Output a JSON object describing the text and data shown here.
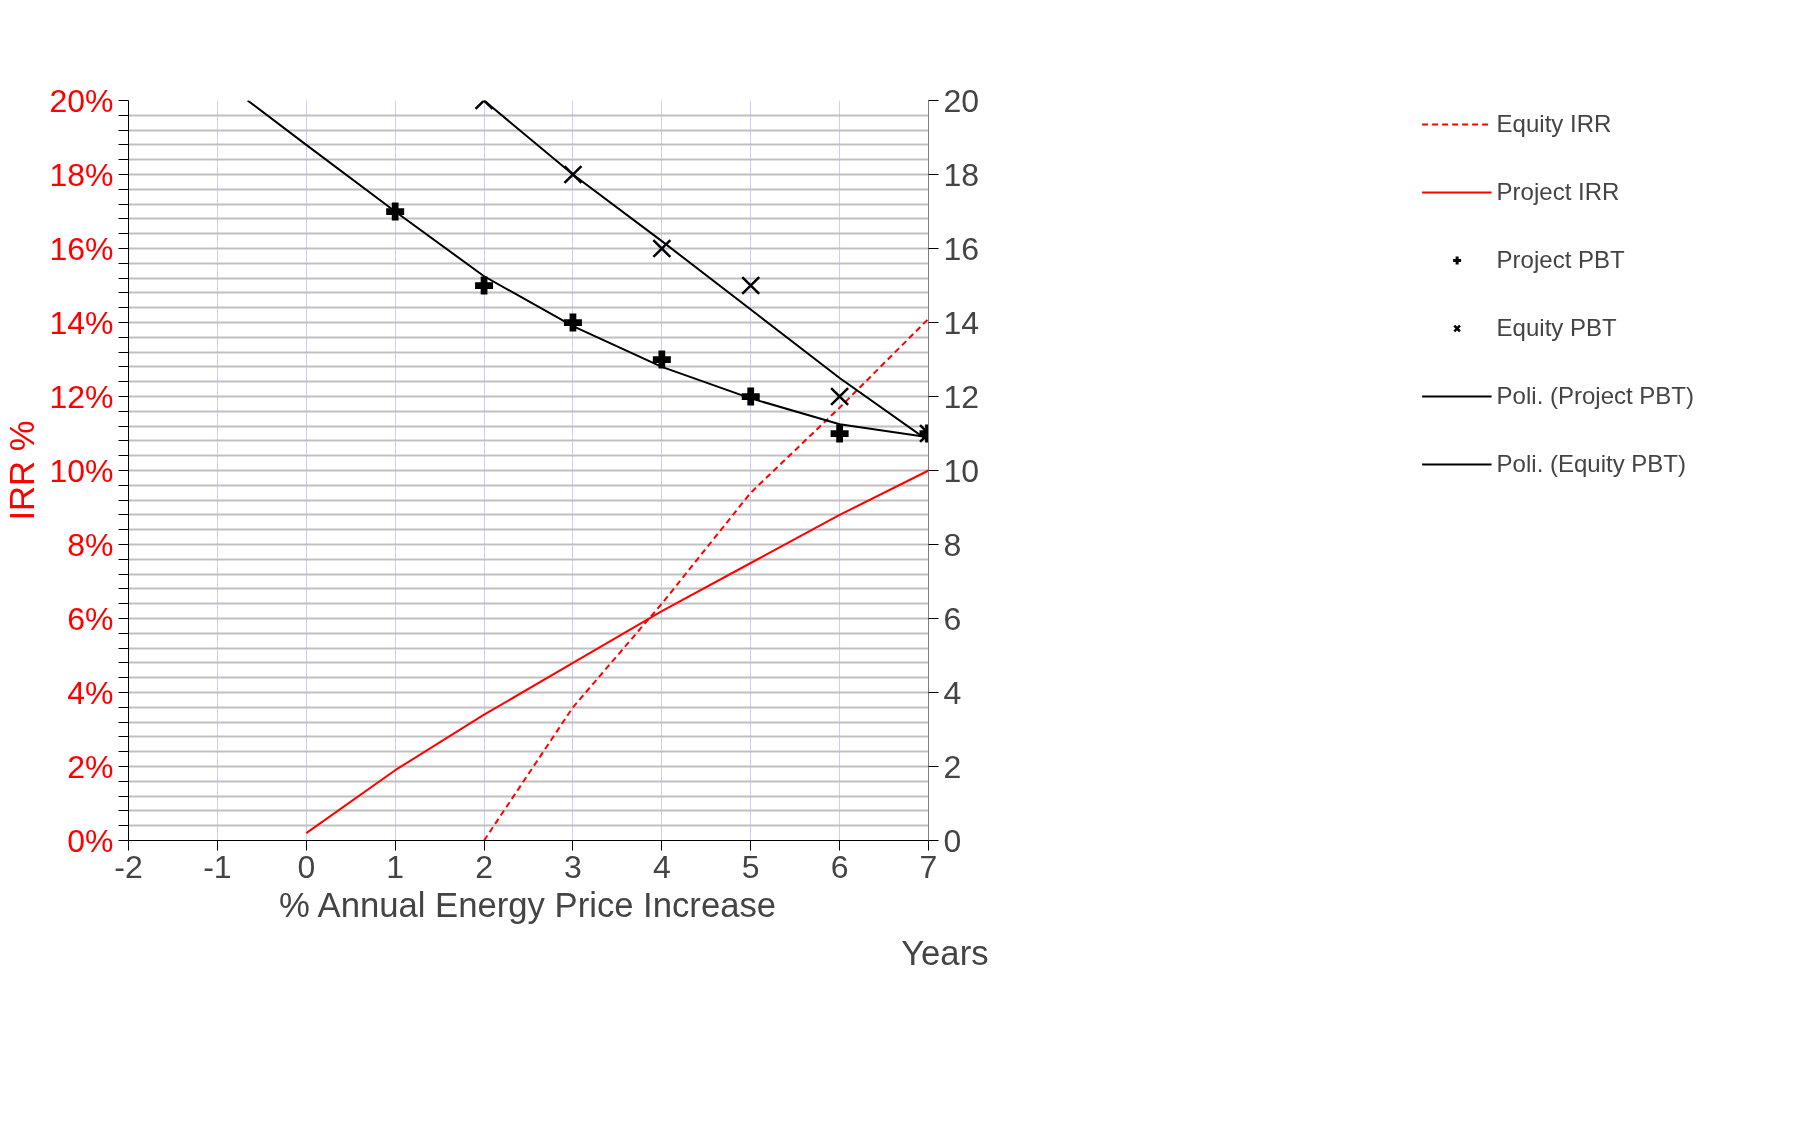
{
  "chart_data": {
    "type": "line",
    "xlabel": "% Annual Energy Price Increase",
    "ylabel": "IRR %",
    "y2label": "Years",
    "xlim": [
      -2,
      7
    ],
    "xticks": [
      -2,
      -1,
      0,
      1,
      2,
      3,
      4,
      5,
      6,
      7
    ],
    "ylim": [
      0,
      20
    ],
    "yticks": [
      {
        "value": 0,
        "label": "0%"
      },
      {
        "value": 0.4,
        "label": null
      },
      {
        "value": 0.8,
        "label": null
      },
      {
        "value": 1.2,
        "label": null
      },
      {
        "value": 1.6,
        "label": null
      },
      {
        "value": 2,
        "label": "2%"
      },
      {
        "value": 2.4,
        "label": null
      },
      {
        "value": 2.8,
        "label": null
      },
      {
        "value": 3.2,
        "label": null
      },
      {
        "value": 3.6,
        "label": null
      },
      {
        "value": 4,
        "label": "4%"
      },
      {
        "value": 4.4,
        "label": null
      },
      {
        "value": 4.8,
        "label": null
      },
      {
        "value": 5.2,
        "label": null
      },
      {
        "value": 5.6,
        "label": null
      },
      {
        "value": 6,
        "label": "6%"
      },
      {
        "value": 6.4,
        "label": null
      },
      {
        "value": 6.8,
        "label": null
      },
      {
        "value": 7.2,
        "label": null
      },
      {
        "value": 7.6,
        "label": null
      },
      {
        "value": 8,
        "label": "8%"
      },
      {
        "value": 8.4,
        "label": null
      },
      {
        "value": 8.8,
        "label": null
      },
      {
        "value": 9.2,
        "label": null
      },
      {
        "value": 9.6,
        "label": null
      },
      {
        "value": 10,
        "label": "10%"
      },
      {
        "value": 10.4,
        "label": null
      },
      {
        "value": 10.8,
        "label": null
      },
      {
        "value": 11.2,
        "label": null
      },
      {
        "value": 11.6,
        "label": null
      },
      {
        "value": 12,
        "label": "12%"
      },
      {
        "value": 12.4,
        "label": null
      },
      {
        "value": 12.8,
        "label": null
      },
      {
        "value": 13.2,
        "label": null
      },
      {
        "value": 13.6,
        "label": null
      },
      {
        "value": 14,
        "label": "14%"
      },
      {
        "value": 14.4,
        "label": null
      },
      {
        "value": 14.8,
        "label": null
      },
      {
        "value": 15.2,
        "label": null
      },
      {
        "value": 15.6,
        "label": null
      },
      {
        "value": 16,
        "label": "16%"
      },
      {
        "value": 16.4,
        "label": null
      },
      {
        "value": 16.8,
        "label": null
      },
      {
        "value": 17.2,
        "label": null
      },
      {
        "value": 17.6,
        "label": null
      },
      {
        "value": 18,
        "label": "18%"
      },
      {
        "value": 18.4,
        "label": null
      },
      {
        "value": 18.8,
        "label": null
      },
      {
        "value": 19.2,
        "label": null
      },
      {
        "value": 19.6,
        "label": null
      },
      {
        "value": 20,
        "label": "20%"
      }
    ],
    "y2lim": [
      0,
      20
    ],
    "y2ticks": [
      0,
      2,
      4,
      6,
      8,
      10,
      12,
      14,
      16,
      18,
      20
    ],
    "grid": true,
    "legend": "right",
    "series": [
      {
        "name": "Equity IRR",
        "line_style": "dashed",
        "marker": "none",
        "color": "#ff0000",
        "x": [
          2,
          3,
          4,
          5,
          6,
          7
        ],
        "values": [
          0,
          3.6,
          6.4,
          9.4,
          11.7,
          14.1
        ]
      },
      {
        "name": "Project IRR",
        "line_style": "solid",
        "marker": "none",
        "color": "#ff0000",
        "x": [
          0,
          1,
          2,
          3,
          4,
          5,
          6,
          7
        ],
        "values": [
          0.2,
          1.9,
          3.4,
          4.8,
          6.2,
          7.5,
          8.8,
          10
        ]
      },
      {
        "name": "Project PBT",
        "type": "scatter",
        "marker": "cross",
        "axis": "y2",
        "color": "#000000",
        "x": [
          1,
          2,
          3,
          4,
          5,
          6,
          7
        ],
        "values": [
          17,
          15,
          14,
          13,
          12,
          11,
          11
        ]
      },
      {
        "name": "Equity PBT",
        "type": "scatter",
        "marker": "x",
        "axis": "y2",
        "color": "#000000",
        "x": [
          2,
          3,
          4,
          5,
          6,
          7
        ],
        "values": [
          20,
          18,
          16,
          15,
          12,
          11
        ]
      },
      {
        "name": "Poli. (Project PBT)",
        "line_style": "solid",
        "marker": "none",
        "axis": "y2",
        "color": "#000000",
        "x": [
          -0.66,
          0,
          1,
          2,
          3,
          4,
          5,
          6,
          7
        ],
        "values": [
          20,
          18.8,
          17,
          15.25,
          13.9,
          12.8,
          11.95,
          11.25,
          10.9
        ]
      },
      {
        "name": "Poli. (Equity PBT)",
        "line_style": "solid",
        "marker": "none",
        "axis": "y2",
        "color": "#000000",
        "x": [
          2,
          3,
          4,
          5,
          6,
          7
        ],
        "values": [
          20,
          18,
          16.2,
          14.35,
          12.5,
          10.8
        ]
      }
    ]
  }
}
